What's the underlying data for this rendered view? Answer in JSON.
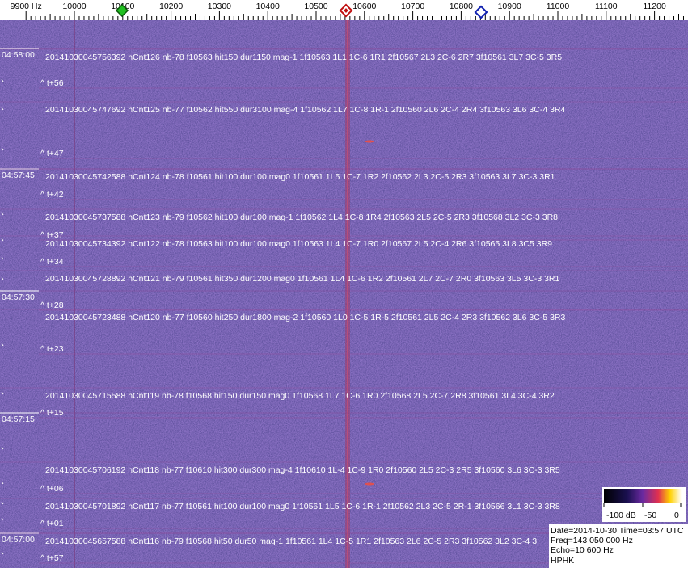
{
  "frequency_axis": {
    "ticks": [
      "9900 Hz",
      "10000",
      "10100",
      "10200",
      "10300",
      "10400",
      "10500",
      "10600",
      "10700",
      "10800",
      "10900",
      "11000",
      "11100",
      "11200"
    ]
  },
  "time_labels": [
    "04:58:00",
    "04:57:45",
    "04:57:30",
    "04:57:15",
    "04:57:00"
  ],
  "detections": [
    "20141030045756392 hCnt126 nb-78 f10563 hit150 dur1150 mag-1 1f10563 1L1 1C-6 1R1 2f10567 2L3 2C-6 2R7 3f10561 3L7 3C-5 3R5",
    "20141030045747692 hCnt125 nb-77 f10562 hit550 dur3100 mag-4 1f10562 1L7 1C-8 1R-1 2f10560 2L6 2C-4 2R4 3f10563 3L6 3C-4 3R4",
    "20141030045742588 hCnt124 nb-78 f10561 hit100 dur100 mag0 1f10561 1L5 1C-7 1R2 2f10562 2L3 2C-5 2R3 3f10563 3L7 3C-3 3R1",
    "20141030045737588 hCnt123 nb-79 f10562 hit100 dur100 mag-1 1f10562 1L4 1C-8 1R4 2f10563 2L5 2C-5 2R3 3f10568 3L2 3C-3 3R8",
    "20141030045734392 hCnt122 nb-78 f10563 hit100 dur100 mag0 1f10563 1L4 1C-7 1R0 2f10567 2L5 2C-4 2R6 3f10565 3L8 3C5 3R9",
    "20141030045728892 hCnt121 nb-79 f10561 hit350 dur1200 mag0 1f10561 1L4 1C-6 1R2 2f10561 2L7 2C-7 2R0 3f10563 3L5 3C-3 3R1",
    "20141030045723488 hCnt120 nb-77 f10560 hit250 dur1800 mag-2 1f10560 1L0 1C-5 1R-5 2f10561 2L5 2C-4 2R3 3f10562 3L6 3C-5 3R3",
    "20141030045715588 hCnt119 nb-78 f10568 hit150 dur150 mag0 1f10568 1L7 1C-6 1R0 2f10568 2L5 2C-7 2R8 3f10561 3L4 3C-4 3R2",
    "20141030045706192 hCnt118 nb-77 f10610 hit300 dur300 mag-4 1f10610 1L-4 1C-9 1R0 2f10560 2L5 2C-3 2R5 3f10560 3L6 3C-3 3R5",
    "20141030045701892 hCnt117 nb-77 f10561 hit100 dur100 mag0 1f10561 1L5 1C-6 1R-1 2f10562 2L3 2C-5 2R-1 3f10566 3L1 3C-3 3R8",
    "20141030045657588 hCnt116 nb-79 f10568 hit50 dur50 mag-1 1f10561 1L4 1C-5 1R1 2f10563 2L6 2C-5 2R3 3f10562 3L2 3C-4 3"
  ],
  "offsets": [
    "^ t+56",
    "^ t+47",
    "^ t+42",
    "^ t+37",
    "^ t+34",
    "^ t+28",
    "^ t+23",
    "^ t+15",
    "^ t+06",
    "^ t+01",
    "^ t+57"
  ],
  "color_scale": {
    "labels": [
      "-100 dB",
      "-50",
      "0"
    ]
  },
  "info": {
    "lines": [
      "Date=2014-10-30 Time=03:57 UTC",
      "Freq=143 050 000 Hz",
      "Echo=10 600 Hz",
      "HPHK"
    ]
  }
}
